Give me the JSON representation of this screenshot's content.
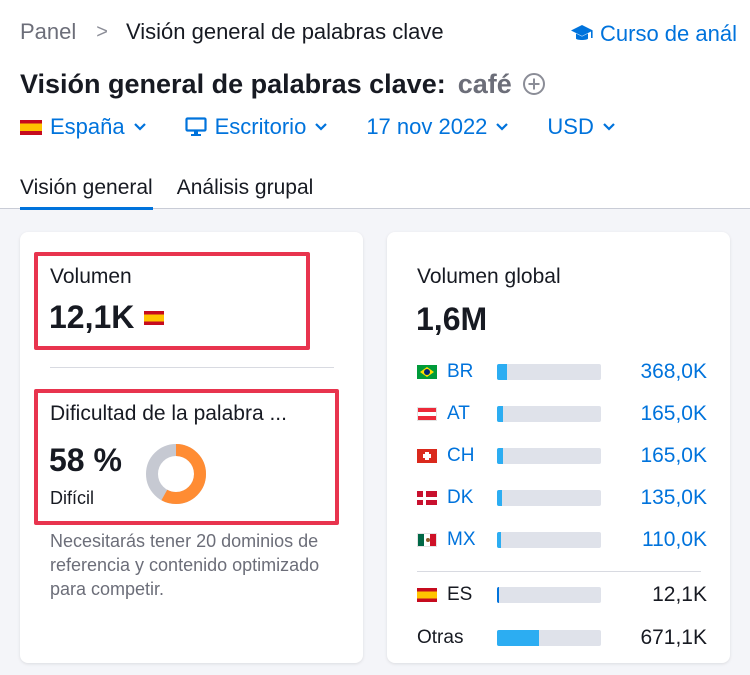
{
  "breadcrumb": {
    "root": "Panel",
    "separator": ">",
    "current": "Visión general de palabras clave"
  },
  "course_link": {
    "label": "Curso de anál"
  },
  "title": {
    "text": "Visión general de palabras clave:",
    "keyword": "café"
  },
  "filters": {
    "country": "España",
    "device": "Escritorio",
    "date": "17 nov 2022",
    "currency": "USD"
  },
  "tabs": [
    {
      "label": "Visión general",
      "active": true
    },
    {
      "label": "Análisis grupal",
      "active": false
    }
  ],
  "volume": {
    "label": "Volumen",
    "value": "12,1K"
  },
  "difficulty": {
    "label": "Dificultad de la palabra ...",
    "percent_label": "58 %",
    "percent": 58,
    "level": "Difícil",
    "note": "Necesitarás tener 20 dominios de referencia y contenido optimizado para competir.",
    "colors": {
      "fill": "#ff8c33",
      "track": "#c6c9d2"
    }
  },
  "global_volume": {
    "label": "Volumen global",
    "value": "1,6M",
    "rows": [
      {
        "code": "BR",
        "flag": "flag-brazil-icon",
        "value": "368,0K",
        "share": 0.1
      },
      {
        "code": "AT",
        "flag": "flag-austria-icon",
        "value": "165,0K",
        "share": 0.055
      },
      {
        "code": "CH",
        "flag": "flag-switzerland-icon",
        "value": "165,0K",
        "share": 0.055
      },
      {
        "code": "DK",
        "flag": "flag-denmark-icon",
        "value": "135,0K",
        "share": 0.05
      },
      {
        "code": "MX",
        "flag": "flag-mexico-icon",
        "value": "110,0K",
        "share": 0.04
      }
    ],
    "es_row": {
      "code": "ES",
      "flag": "flag-spain-icon",
      "value": "12,1K",
      "share": 0.02
    },
    "other_row": {
      "code": "Otras",
      "value": "671,1K",
      "share": 0.4
    }
  },
  "colors": {
    "accent": "#0073dc",
    "highlight": "#e8344e",
    "bar": "#2cadf2",
    "bar_track": "#dfe2ea"
  }
}
